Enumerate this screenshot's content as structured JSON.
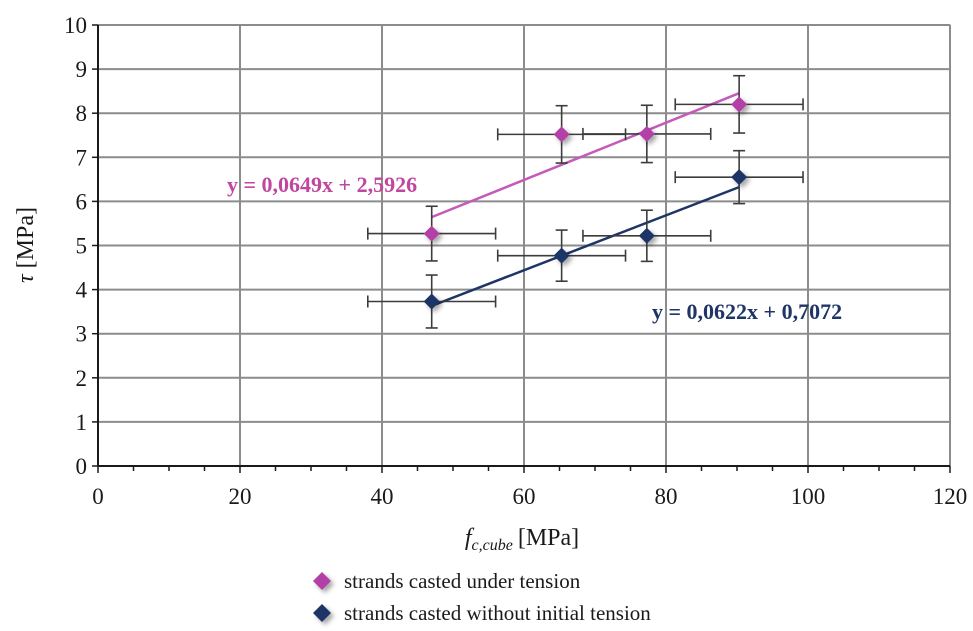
{
  "chart_data": {
    "type": "scatter",
    "xlabel": "f",
    "xlabel_sub": "c,cube",
    "xlabel_unit": "[MPa]",
    "ylabel": "τ",
    "ylabel_unit": "[MPa]",
    "xlim": [
      0,
      120
    ],
    "ylim": [
      0,
      10
    ],
    "x_ticks": [
      "0",
      "20",
      "40",
      "60",
      "80",
      "100",
      "120"
    ],
    "y_ticks": [
      "0",
      "1",
      "2",
      "3",
      "4",
      "5",
      "6",
      "7",
      "8",
      "9",
      "10"
    ],
    "grid": true,
    "legend_position": "bottom",
    "series": [
      {
        "name": "strands casted under tension",
        "color": "#b23fa7",
        "marker": "diamond",
        "points": [
          {
            "x": 47,
            "y": 5.27,
            "xerr": 9,
            "yerr": 0.62
          },
          {
            "x": 65.3,
            "y": 7.52,
            "xerr": 9,
            "yerr": 0.65
          },
          {
            "x": 77.3,
            "y": 7.53,
            "xerr": 9,
            "yerr": 0.65
          },
          {
            "x": 90.3,
            "y": 8.2,
            "xerr": 9,
            "yerr": 0.65
          }
        ],
        "trendline": {
          "slope": 0.0649,
          "intercept": 2.5926,
          "x_range": [
            47,
            90.3
          ],
          "color": "#c45ab9"
        },
        "equation": "y = 0,0649x + 2,5926",
        "equation_color": "#c0469f"
      },
      {
        "name": "strands casted without initial tension",
        "color": "#1e3566",
        "marker": "diamond",
        "points": [
          {
            "x": 47,
            "y": 3.73,
            "xerr": 9,
            "yerr": 0.6
          },
          {
            "x": 65.3,
            "y": 4.77,
            "xerr": 9,
            "yerr": 0.58
          },
          {
            "x": 77.3,
            "y": 5.22,
            "xerr": 9,
            "yerr": 0.58
          },
          {
            "x": 90.3,
            "y": 6.55,
            "xerr": 9,
            "yerr": 0.6
          }
        ],
        "trendline": {
          "slope": 0.0622,
          "intercept": 0.7072,
          "x_range": [
            47,
            90.3
          ],
          "color": "#1e3566"
        },
        "equation": "y = 0,0622x + 0,7072",
        "equation_color": "#1e3566"
      }
    ]
  }
}
